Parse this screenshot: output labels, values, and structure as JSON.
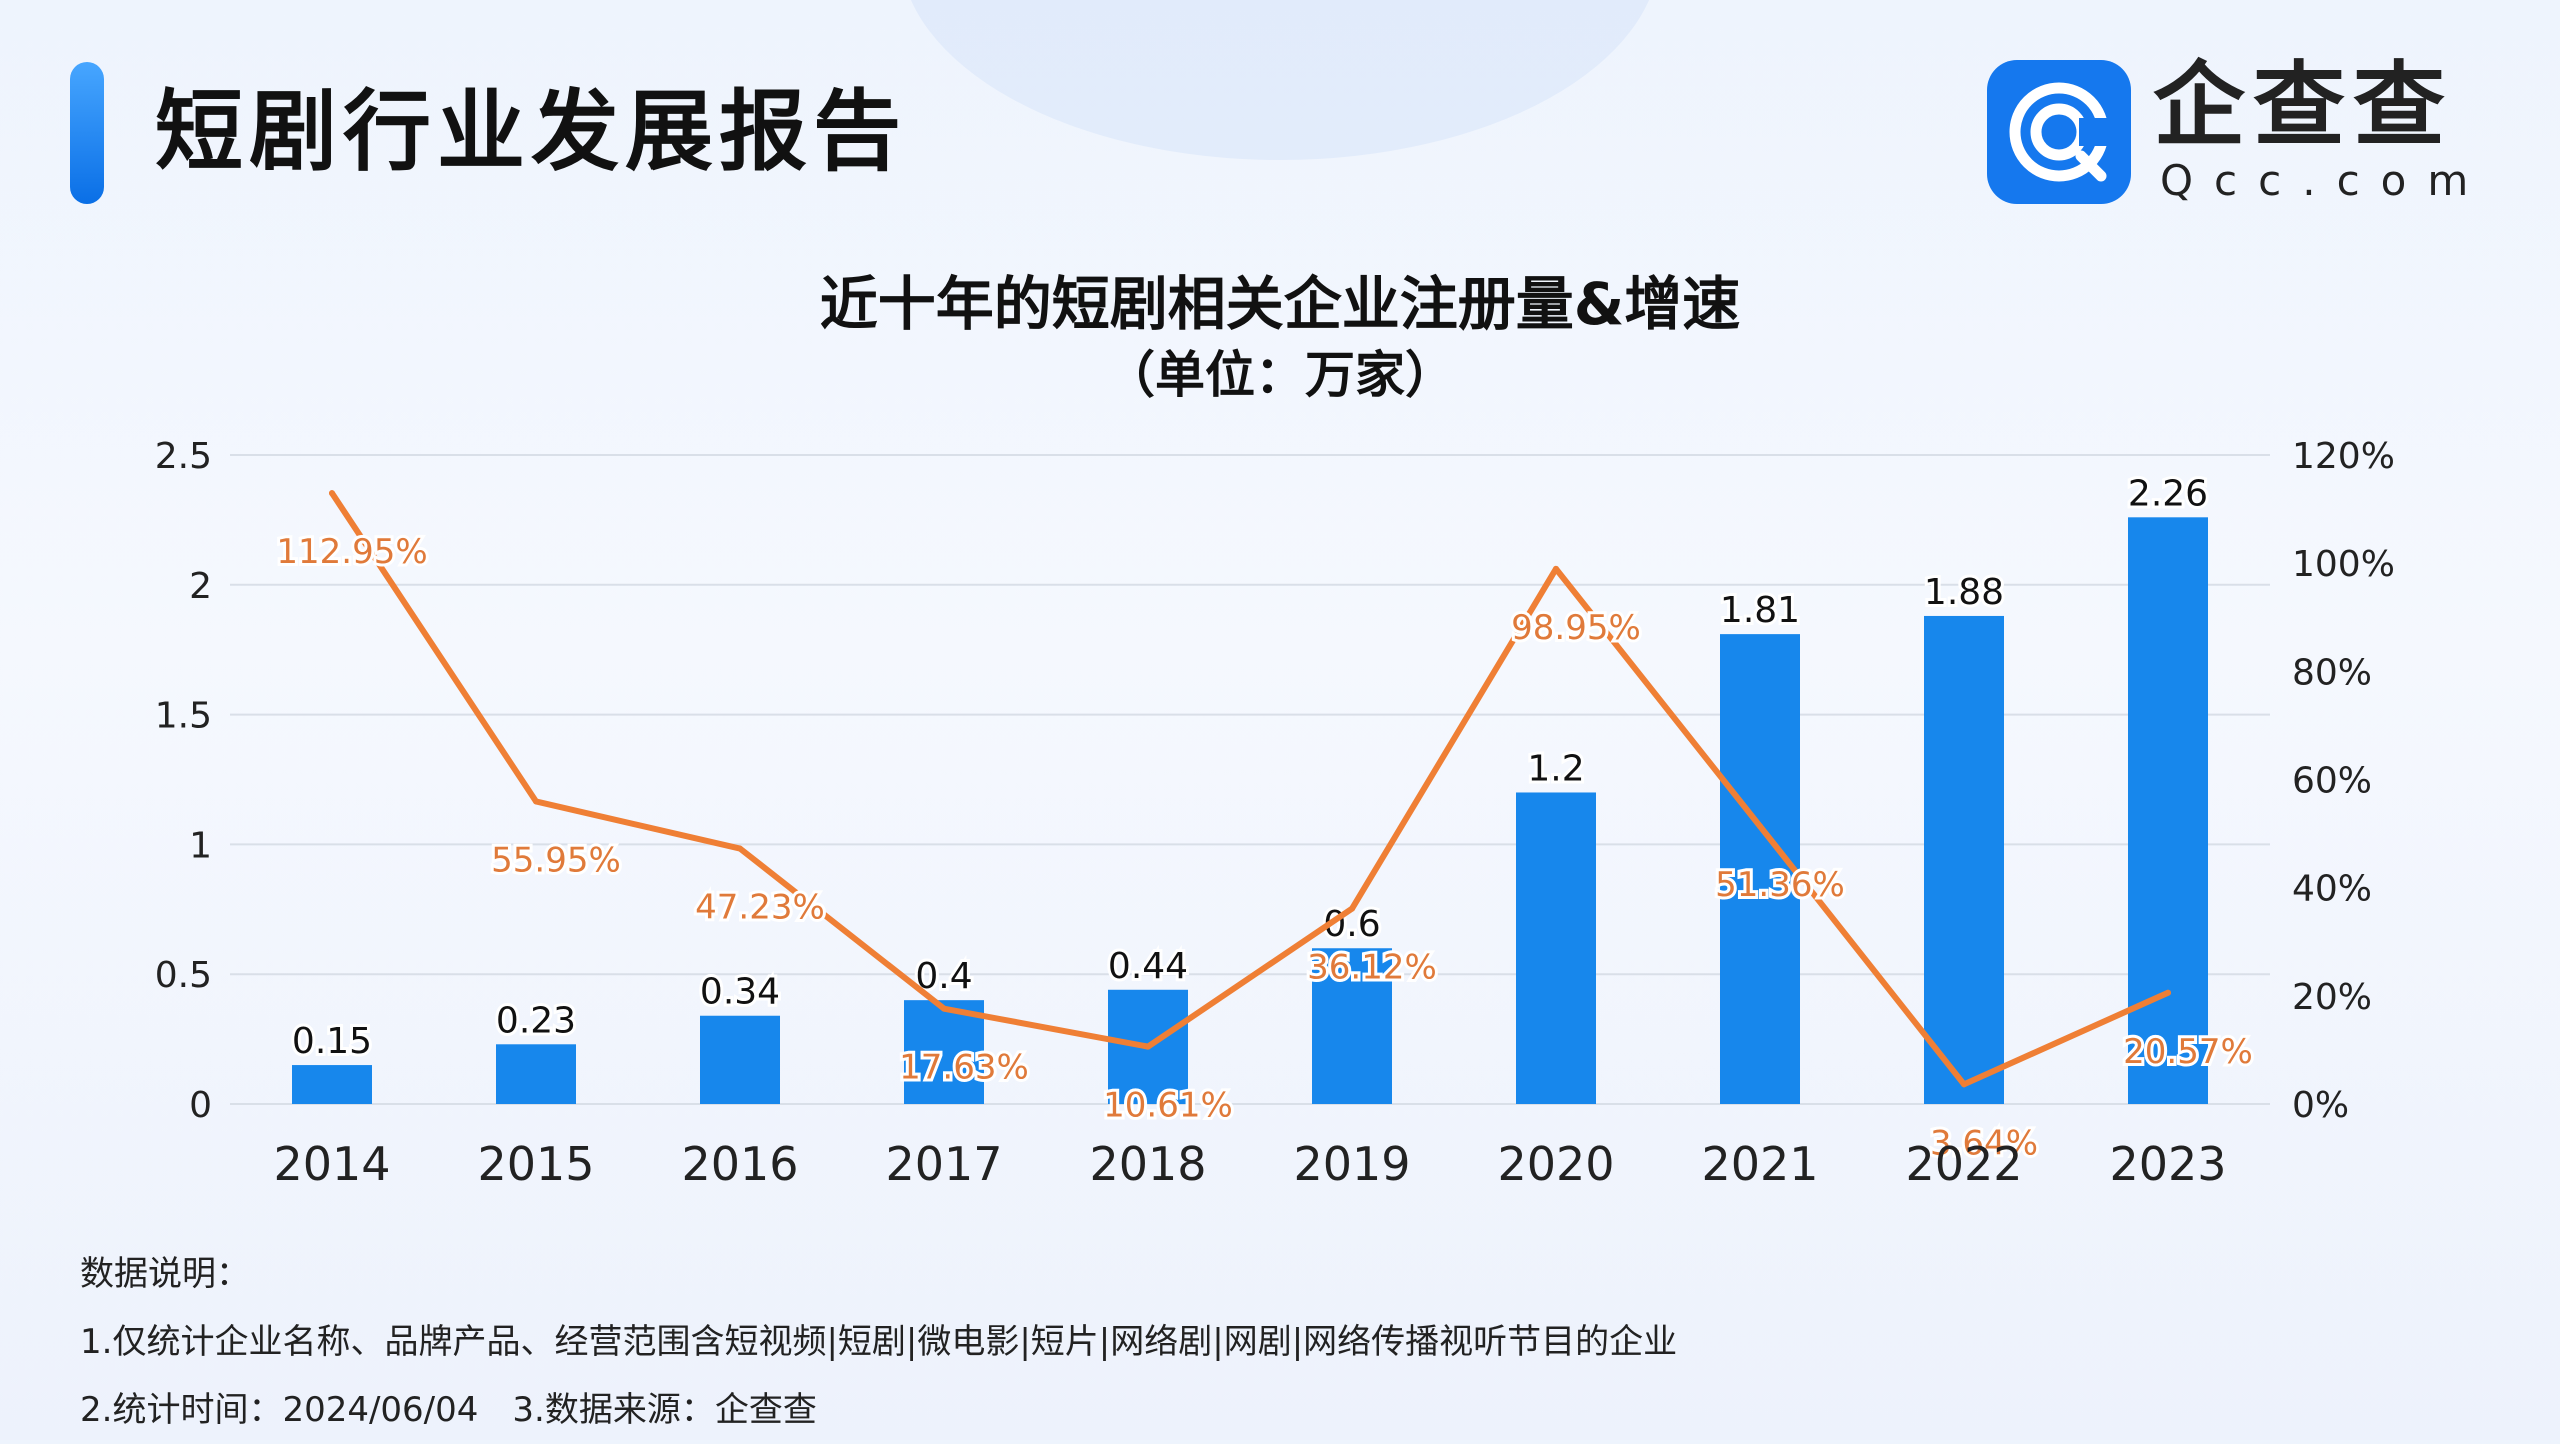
{
  "header": {
    "title": "短剧行业发展报告",
    "logo": {
      "cn": "企查查",
      "en": "Qcc.com",
      "brand_color": "#1578ee"
    }
  },
  "chart_data": {
    "type": "bar+line",
    "title": "近十年的短剧相关企业注册量&增速",
    "subtitle": "（单位：万家）",
    "categories": [
      "2014",
      "2015",
      "2016",
      "2017",
      "2018",
      "2019",
      "2020",
      "2021",
      "2022",
      "2023"
    ],
    "series": [
      {
        "type": "bar",
        "axis": "left",
        "color": "#1787ec",
        "values": [
          0.15,
          0.23,
          0.34,
          0.4,
          0.44,
          0.6,
          1.2,
          1.81,
          1.88,
          2.26
        ],
        "labels": [
          "0.15",
          "0.23",
          "0.34",
          "0.4",
          "0.44",
          "0.6",
          "1.2",
          "1.81",
          "1.88",
          "2.26"
        ]
      },
      {
        "type": "line",
        "axis": "right",
        "color": "#ef7f35",
        "values": [
          112.95,
          55.95,
          47.23,
          17.63,
          10.61,
          36.12,
          98.95,
          51.36,
          3.64,
          20.57
        ],
        "labels": [
          "112.95%",
          "55.95%",
          "47.23%",
          "17.63%",
          "10.61%",
          "36.12%",
          "98.95%",
          "51.36%",
          "3.64%",
          "20.57%"
        ]
      }
    ],
    "y_left": {
      "ylim": [
        0,
        2.5
      ],
      "ticks": [
        "0",
        "0.5",
        "1",
        "1.5",
        "2",
        "2.5"
      ]
    },
    "y_right": {
      "ylim": [
        0,
        120
      ],
      "ticks": [
        "0%",
        "20%",
        "40%",
        "60%",
        "80%",
        "100%",
        "120%"
      ]
    },
    "grid": true,
    "legend": "none"
  },
  "notes": {
    "heading": "数据说明：",
    "line1": "1.仅统计企业名称、品牌产品、经营范围含短视频|短剧|微电影|短片|网络剧|网剧|网络传播视听节目的企业",
    "line2": "2.统计时间：2024/06/04　3.数据来源：企查查"
  }
}
